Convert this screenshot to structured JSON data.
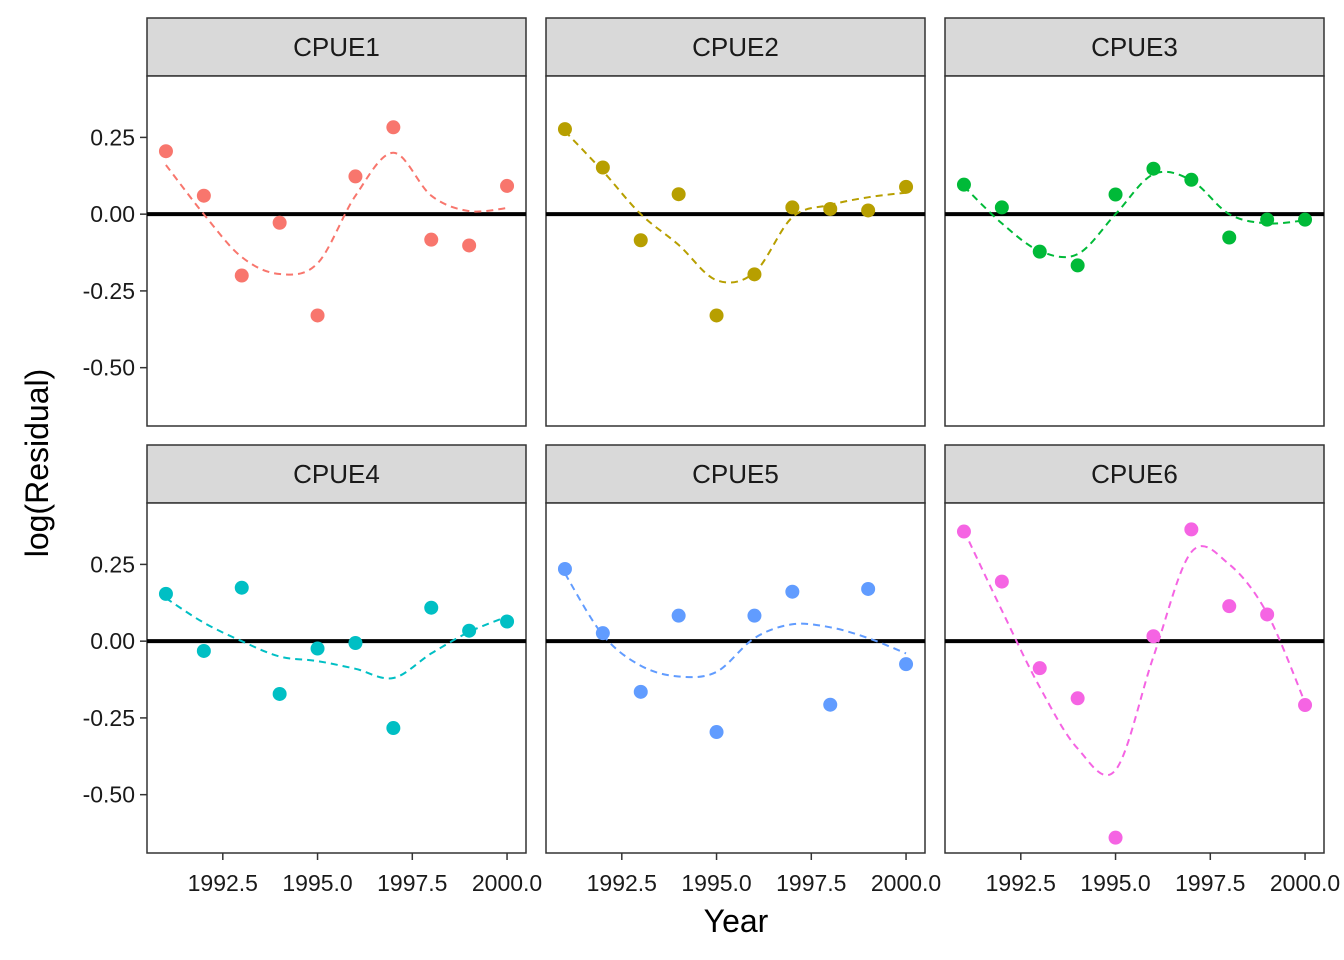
{
  "chart_data": {
    "type": "scatter",
    "xlabel": "Year",
    "ylabel": "log(Residual)",
    "xlim": [
      1990.5,
      2000.5
    ],
    "ylim": [
      -0.69,
      0.45
    ],
    "x_ticks": [
      1992.5,
      1995.0,
      1997.5,
      2000.0
    ],
    "x_tick_labels": [
      "1992.5",
      "1995.0",
      "1997.5",
      "2000.0"
    ],
    "y_ticks": [
      0.25,
      0.0,
      -0.25,
      -0.5
    ],
    "y_tick_labels": [
      "0.25",
      "0.00",
      "-0.25",
      "-0.50"
    ],
    "reference_line_y": 0,
    "grid": false,
    "layout": "facet 2 rows x 3 columns, shared axes",
    "x": [
      1991,
      1992,
      1993,
      1994,
      1995,
      1996,
      1997,
      1998,
      1999,
      2000
    ],
    "series": [
      {
        "name": "CPUE1",
        "color": "#F8766D",
        "values": [
          0.205,
          0.06,
          -0.2,
          -0.028,
          -0.33,
          0.123,
          0.283,
          -0.083,
          -0.102,
          0.092
        ],
        "smooth_x": [
          1991,
          1992,
          1993,
          1994,
          1995,
          1996,
          1997,
          1998,
          1999,
          2000
        ],
        "smooth": [
          0.16,
          0.0,
          -0.14,
          -0.195,
          -0.16,
          0.06,
          0.2,
          0.06,
          0.01,
          0.02
        ]
      },
      {
        "name": "CPUE2",
        "color": "#B79F00",
        "values": [
          0.277,
          0.152,
          -0.085,
          0.065,
          -0.33,
          -0.196,
          0.022,
          0.017,
          0.012,
          0.089
        ],
        "smooth_x": [
          1991,
          1992,
          1993,
          1994,
          1995,
          1996,
          1997,
          1998,
          1999,
          2000
        ],
        "smooth": [
          0.27,
          0.14,
          0.0,
          -0.1,
          -0.215,
          -0.19,
          -0.01,
          0.03,
          0.055,
          0.07
        ]
      },
      {
        "name": "CPUE3",
        "color": "#00BA38",
        "values": [
          0.096,
          0.022,
          -0.122,
          -0.167,
          0.064,
          0.148,
          0.112,
          -0.076,
          -0.018,
          -0.018
        ],
        "smooth_x": [
          1991,
          1992,
          1993,
          1994,
          1995,
          1996,
          1997,
          1998,
          1999,
          2000
        ],
        "smooth": [
          0.09,
          -0.03,
          -0.12,
          -0.13,
          0.0,
          0.13,
          0.11,
          0.0,
          -0.03,
          -0.02
        ]
      },
      {
        "name": "CPUE4",
        "color": "#00BFC4",
        "values": [
          0.154,
          -0.032,
          0.174,
          -0.172,
          -0.024,
          -0.006,
          -0.283,
          0.109,
          0.034,
          0.064
        ],
        "smooth_x": [
          1991,
          1992,
          1993,
          1994,
          1995,
          1996,
          1997,
          1998,
          1999,
          2000
        ],
        "smooth": [
          0.14,
          0.06,
          0.0,
          -0.05,
          -0.065,
          -0.09,
          -0.12,
          -0.04,
          0.03,
          0.08
        ]
      },
      {
        "name": "CPUE5",
        "color": "#619CFF",
        "values": [
          0.235,
          0.026,
          -0.165,
          0.083,
          -0.296,
          0.083,
          0.161,
          -0.207,
          0.17,
          -0.075
        ],
        "smooth_x": [
          1991,
          1992,
          1993,
          1994,
          1995,
          1996,
          1997,
          1998,
          1999,
          2000
        ],
        "smooth": [
          0.22,
          0.02,
          -0.08,
          -0.115,
          -0.1,
          0.01,
          0.055,
          0.045,
          0.01,
          -0.04
        ]
      },
      {
        "name": "CPUE6",
        "color": "#F564E3",
        "values": [
          0.357,
          0.194,
          -0.088,
          -0.186,
          -0.64,
          0.016,
          0.364,
          0.114,
          0.087,
          -0.208
        ],
        "smooth_x": [
          1991,
          1992,
          1993,
          1994,
          1995,
          1996,
          1997,
          1998,
          1999,
          2000
        ],
        "smooth": [
          0.36,
          0.1,
          -0.15,
          -0.35,
          -0.42,
          -0.05,
          0.29,
          0.25,
          0.09,
          -0.2
        ]
      }
    ]
  }
}
